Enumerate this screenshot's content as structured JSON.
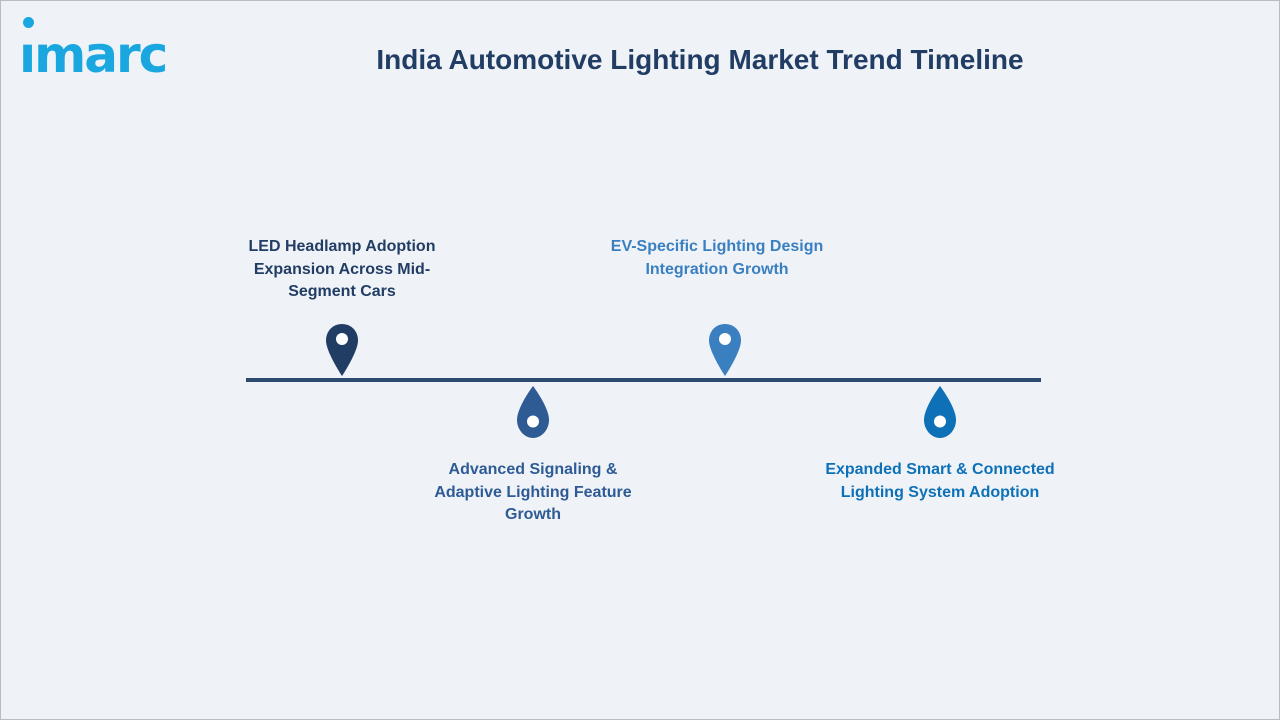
{
  "logo": {
    "text": "ımarc",
    "color": "#1aa7e0"
  },
  "title": "India Automotive Lighting Market Trend Timeline",
  "colors": {
    "title": "#223d64",
    "line": "#2c4a6e",
    "background": "#eff3f8"
  },
  "milestones": [
    {
      "label": "LED Headlamp Adoption Expansion Across Mid-Segment Cars",
      "position": "above",
      "color": "#223d64",
      "text_color": "#223d64",
      "icon": "map-pin-icon"
    },
    {
      "label": "Advanced Signaling & Adaptive Lighting Feature Growth",
      "position": "below",
      "color": "#2f5b95",
      "text_color": "#2f5b95",
      "icon": "drop-pin-icon"
    },
    {
      "label": "EV-Specific Lighting Design Integration Growth",
      "position": "above",
      "color": "#3a7fbf",
      "text_color": "#3a7fbf",
      "icon": "map-pin-icon"
    },
    {
      "label": "Expanded Smart & Connected Lighting System Adoption",
      "position": "below",
      "color": "#0e71b8",
      "text_color": "#0e71b8",
      "icon": "drop-pin-icon"
    }
  ]
}
